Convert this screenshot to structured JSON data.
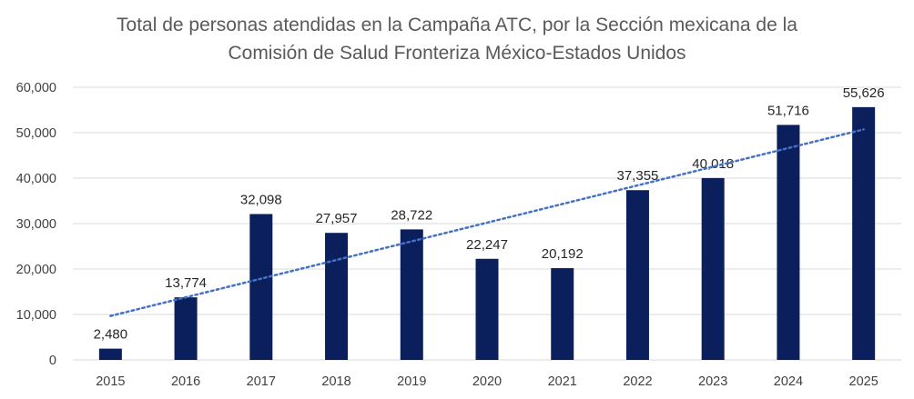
{
  "chart_data": {
    "type": "bar",
    "title_lines": [
      "Total de personas atendidas en la Campaña ATC, por la  Sección mexicana de la",
      "Comisión de Salud Fronteriza México-Estados Unidos"
    ],
    "categories": [
      "2015",
      "2016",
      "2017",
      "2018",
      "2019",
      "2020",
      "2021",
      "2022",
      "2023",
      "2024",
      "2025"
    ],
    "values": [
      2480,
      13774,
      32098,
      27957,
      28722,
      22247,
      20192,
      37355,
      40018,
      51716,
      55626
    ],
    "data_labels": [
      "2,480",
      "13,774",
      "32,098",
      "27,957",
      "28,722",
      "22,247",
      "20,192",
      "37,355",
      "40,018",
      "51,716",
      "55,626"
    ],
    "ylim": [
      0,
      60000
    ],
    "yticks": [
      0,
      10000,
      20000,
      30000,
      40000,
      50000,
      60000
    ],
    "ytick_labels": [
      "0",
      "10,000",
      "20,000",
      "30,000",
      "40,000",
      "50,000",
      "60,000"
    ],
    "xlabel": "",
    "ylabel": "",
    "grid": true,
    "trendline": {
      "type": "linear",
      "style": "dotted"
    },
    "colors": {
      "bar": "#0b1f5c",
      "trend": "#4472c4",
      "grid": "#d9d9d9"
    }
  }
}
